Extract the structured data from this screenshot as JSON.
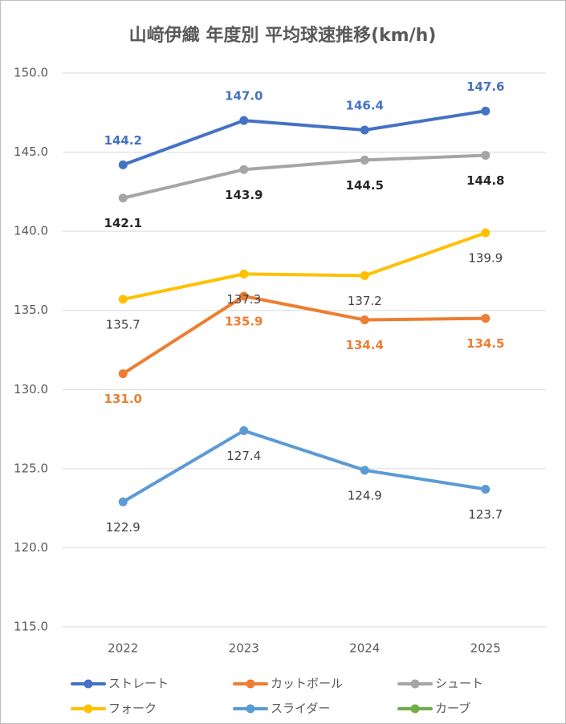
{
  "chart_data": {
    "type": "line",
    "title": "山﨑伊織 年度別 平均球速推移(km/h)",
    "categories": [
      "2022",
      "2023",
      "2024",
      "2025"
    ],
    "ylim": [
      115,
      150
    ],
    "yticks": [
      {
        "value": 115,
        "label": "115.0"
      },
      {
        "value": 120,
        "label": "120.0"
      },
      {
        "value": 125,
        "label": "125.0"
      },
      {
        "value": 130,
        "label": "130.0"
      },
      {
        "value": 135,
        "label": "135.0"
      },
      {
        "value": 140,
        "label": "140.0"
      },
      {
        "value": 145,
        "label": "145.0"
      },
      {
        "value": 150,
        "label": "150.0"
      }
    ],
    "grid": true,
    "legend": "bottom",
    "series": [
      {
        "name": "ストレート",
        "color": "#4472c4",
        "values": [
          144.2,
          147.0,
          146.4,
          147.6
        ],
        "value_labels": [
          "144.2",
          "147.0",
          "146.4",
          "147.6"
        ],
        "label_color": "#4472c4",
        "label_position": "above",
        "label_bold": true
      },
      {
        "name": "カットボール",
        "color": "#ed7d31",
        "values": [
          131.0,
          135.9,
          134.4,
          134.5
        ],
        "value_labels": [
          "131.0",
          "135.9",
          "134.4",
          "134.5"
        ],
        "label_color": "#ed7d31",
        "label_position": "below",
        "label_bold": true
      },
      {
        "name": "シュート",
        "color": "#a5a5a5",
        "values": [
          142.1,
          143.9,
          144.5,
          144.8
        ],
        "value_labels": [
          "142.1",
          "143.9",
          "144.5",
          "144.8"
        ],
        "label_color": "#262626",
        "label_position": "below",
        "label_bold": true
      },
      {
        "name": "フォーク",
        "color": "#ffc000",
        "values": [
          135.7,
          137.3,
          137.2,
          139.9
        ],
        "value_labels": [
          "135.7",
          "137.3",
          "137.2",
          "139.9"
        ],
        "label_color": "#404040",
        "label_position": "below",
        "label_bold": false
      },
      {
        "name": "スライダー",
        "color": "#5b9bd5",
        "values": [
          122.9,
          127.4,
          124.9,
          123.7
        ],
        "value_labels": [
          "122.9",
          "127.4",
          "124.9",
          "123.7"
        ],
        "label_color": "#404040",
        "label_position": "below",
        "label_bold": false
      },
      {
        "name": "カーブ",
        "color": "#70ad47",
        "values": [
          null,
          null,
          null,
          null
        ]
      }
    ]
  }
}
